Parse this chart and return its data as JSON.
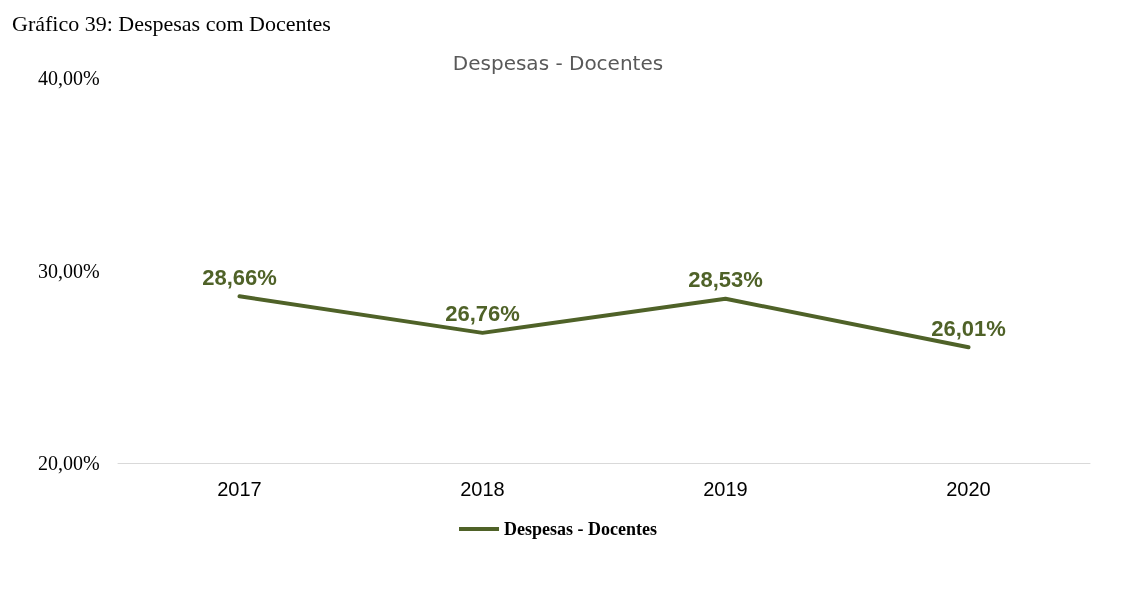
{
  "chart_data": {
    "type": "line",
    "title": "Despesas - Docentes",
    "annotations": [
      "Gráfico 39: Despesas com Docentes"
    ],
    "categories": [
      "2017",
      "2018",
      "2019",
      "2020"
    ],
    "series": [
      {
        "name": "Despesas - Docentes",
        "color": "#4f6228",
        "values": [
          28.66,
          26.76,
          28.53,
          26.01
        ],
        "value_labels": [
          "28,66%",
          "26,76%",
          "28,53%",
          "26,01%"
        ]
      }
    ],
    "ylim": [
      20,
      40
    ],
    "yticks": [
      {
        "value": 20,
        "label": "20,00%"
      },
      {
        "value": 30,
        "label": "30,00%"
      },
      {
        "value": 40,
        "label": "40,00%"
      }
    ],
    "grid": false,
    "legend": "bottom",
    "marker": "none",
    "line_style": "solid"
  }
}
